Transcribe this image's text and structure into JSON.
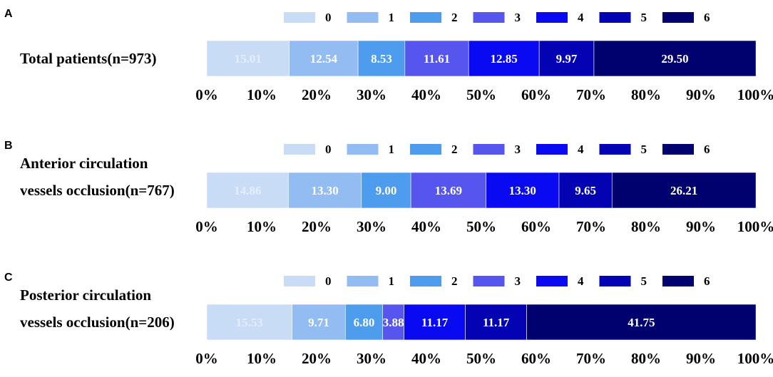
{
  "chart_data": [
    {
      "type": "bar",
      "orientation": "horizontal",
      "stacked": true,
      "panel": "A",
      "category_lines": [
        "Total patients(n=973)"
      ],
      "legend": [
        "0",
        "1",
        "2",
        "3",
        "4",
        "5",
        "6"
      ],
      "legend_placement": "top",
      "series": [
        {
          "name": "0",
          "values": [
            15.01
          ]
        },
        {
          "name": "1",
          "values": [
            12.54
          ]
        },
        {
          "name": "2",
          "values": [
            8.53
          ]
        },
        {
          "name": "3",
          "values": [
            11.61
          ]
        },
        {
          "name": "4",
          "values": [
            12.85
          ]
        },
        {
          "name": "5",
          "values": [
            9.97
          ]
        },
        {
          "name": "6",
          "values": [
            29.5
          ]
        }
      ],
      "data_labels": [
        "15.01",
        "12.54",
        "8.53",
        "11.61",
        "12.85",
        "9.97",
        "29.50"
      ],
      "xlim": [
        0,
        100
      ],
      "x_ticks": [
        "0%",
        "10%",
        "20%",
        "30%",
        "40%",
        "50%",
        "60%",
        "70%",
        "80%",
        "90%",
        "100%"
      ],
      "grid": false
    },
    {
      "type": "bar",
      "orientation": "horizontal",
      "stacked": true,
      "panel": "B",
      "category_lines": [
        "Anterior circulation",
        "vessels occlusion(n=767)"
      ],
      "legend": [
        "0",
        "1",
        "2",
        "3",
        "4",
        "5",
        "6"
      ],
      "legend_placement": "top",
      "series": [
        {
          "name": "0",
          "values": [
            14.86
          ]
        },
        {
          "name": "1",
          "values": [
            13.3
          ]
        },
        {
          "name": "2",
          "values": [
            9.0
          ]
        },
        {
          "name": "3",
          "values": [
            13.69
          ]
        },
        {
          "name": "4",
          "values": [
            13.3
          ]
        },
        {
          "name": "5",
          "values": [
            9.65
          ]
        },
        {
          "name": "6",
          "values": [
            26.21
          ]
        }
      ],
      "data_labels": [
        "14.86",
        "13.30",
        "9.00",
        "13.69",
        "13.30",
        "9.65",
        "26.21"
      ],
      "xlim": [
        0,
        100
      ],
      "x_ticks": [
        "0%",
        "10%",
        "20%",
        "30%",
        "40%",
        "50%",
        "60%",
        "70%",
        "80%",
        "90%",
        "100%"
      ],
      "grid": false
    },
    {
      "type": "bar",
      "orientation": "horizontal",
      "stacked": true,
      "panel": "C",
      "category_lines": [
        "Posterior circulation",
        "vessels occlusion(n=206)"
      ],
      "legend": [
        "0",
        "1",
        "2",
        "3",
        "4",
        "5",
        "6"
      ],
      "legend_placement": "top",
      "series": [
        {
          "name": "0",
          "values": [
            15.53
          ]
        },
        {
          "name": "1",
          "values": [
            9.71
          ]
        },
        {
          "name": "2",
          "values": [
            6.8
          ]
        },
        {
          "name": "3",
          "values": [
            3.88
          ]
        },
        {
          "name": "4",
          "values": [
            11.17
          ]
        },
        {
          "name": "5",
          "values": [
            11.17
          ]
        },
        {
          "name": "6",
          "values": [
            41.75
          ]
        }
      ],
      "data_labels": [
        "15.53",
        "9.71",
        "6.80",
        "3.88",
        "11.17",
        "11.17",
        "41.75"
      ],
      "xlim": [
        0,
        100
      ],
      "x_ticks": [
        "0%",
        "10%",
        "20%",
        "30%",
        "40%",
        "50%",
        "60%",
        "70%",
        "80%",
        "90%",
        "100%"
      ],
      "grid": false
    }
  ],
  "colors": {
    "0": "#c9dcf5",
    "1": "#93bdf2",
    "2": "#4e9ced",
    "3": "#5656ef",
    "4": "#0a0af2",
    "5": "#0303b4",
    "6": "#00006e"
  },
  "label_colors": {
    "0": "#e6eef9",
    "1": "#ffffff",
    "2": "#ffffff",
    "3": "#ffffff",
    "4": "#ffffff",
    "5": "#ffffff",
    "6": "#ffffff"
  }
}
